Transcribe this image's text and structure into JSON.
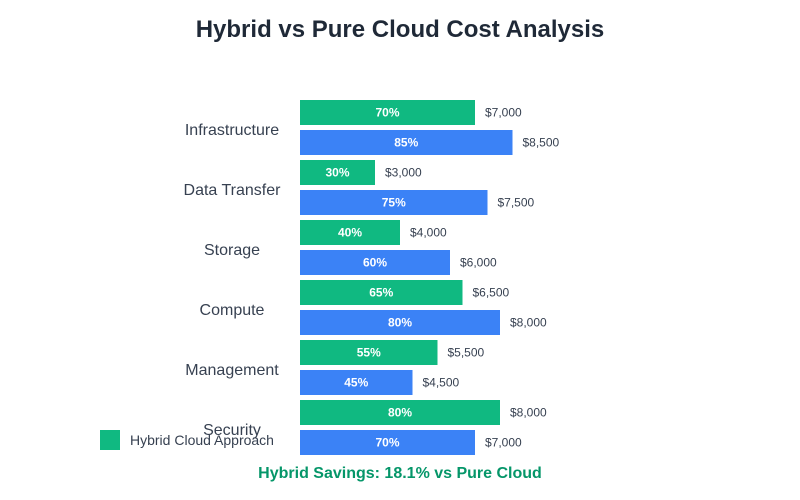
{
  "title": "Hybrid vs Pure Cloud Cost Analysis",
  "legend": {
    "hybrid_label": "Hybrid Cloud Approach"
  },
  "savings_text": "Hybrid Savings: 18.1% vs Pure Cloud",
  "colors": {
    "hybrid": "#10b981",
    "pure": "#3b82f6",
    "savings": "#059669",
    "title": "#1f2937"
  },
  "chart_data": {
    "type": "bar",
    "orientation": "horizontal",
    "title": "Hybrid vs Pure Cloud Cost Analysis",
    "categories": [
      "Infrastructure",
      "Data Transfer",
      "Storage",
      "Compute",
      "Management",
      "Security"
    ],
    "series": [
      {
        "name": "Hybrid Cloud Approach",
        "color": "#10b981",
        "percent": [
          70,
          30,
          40,
          65,
          55,
          80
        ],
        "values": [
          7000,
          3000,
          4000,
          6500,
          5500,
          8000
        ],
        "value_labels": [
          "$7,000",
          "$3,000",
          "$4,000",
          "$6,500",
          "$5,500",
          "$8,000"
        ]
      },
      {
        "color": "#3b82f6",
        "percent": [
          85,
          75,
          60,
          80,
          45,
          70
        ],
        "values": [
          8500,
          7500,
          6000,
          8000,
          4500,
          7000
        ],
        "value_labels": [
          "$8,500",
          "$7,500",
          "$6,000",
          "$8,000",
          "$4,500",
          "$7,000"
        ]
      }
    ],
    "xlim": [
      0,
      100
    ],
    "grid": false,
    "legend": "bottom-left"
  }
}
